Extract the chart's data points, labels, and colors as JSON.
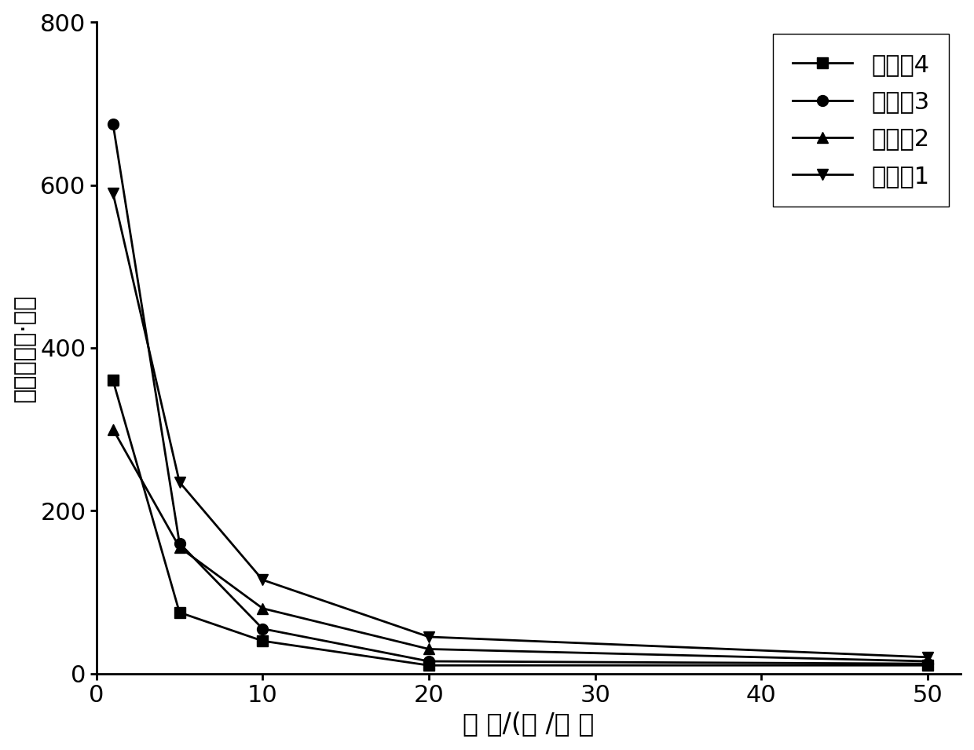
{
  "x": [
    1,
    5,
    10,
    20,
    50
  ],
  "series": [
    {
      "label": "实施兣4",
      "y": [
        360,
        75,
        40,
        10,
        10
      ],
      "marker": "s",
      "color": "#000000",
      "markersize": 10
    },
    {
      "label": "实施兣3",
      "y": [
        675,
        160,
        55,
        15,
        12
      ],
      "marker": "o",
      "color": "#000000",
      "markersize": 10
    },
    {
      "label": "实施兣2",
      "y": [
        300,
        155,
        80,
        30,
        15
      ],
      "marker": "^",
      "color": "#000000",
      "markersize": 10
    },
    {
      "label": "实施兣1",
      "y": [
        590,
        235,
        115,
        45,
        20
      ],
      "marker": "v",
      "color": "#000000",
      "markersize": 10
    }
  ],
  "xlabel": "转 速/(转 /分 ）",
  "ylabel": "粘度／（帕·秒）",
  "xlim": [
    0,
    52
  ],
  "ylim": [
    0,
    800
  ],
  "xticks": [
    0,
    10,
    20,
    30,
    40,
    50
  ],
  "yticks": [
    0,
    200,
    400,
    600,
    800
  ],
  "background_color": "#ffffff",
  "linewidth": 2.0,
  "xlabel_fontsize": 24,
  "ylabel_fontsize": 22,
  "tick_fontsize": 22,
  "legend_fontsize": 22
}
